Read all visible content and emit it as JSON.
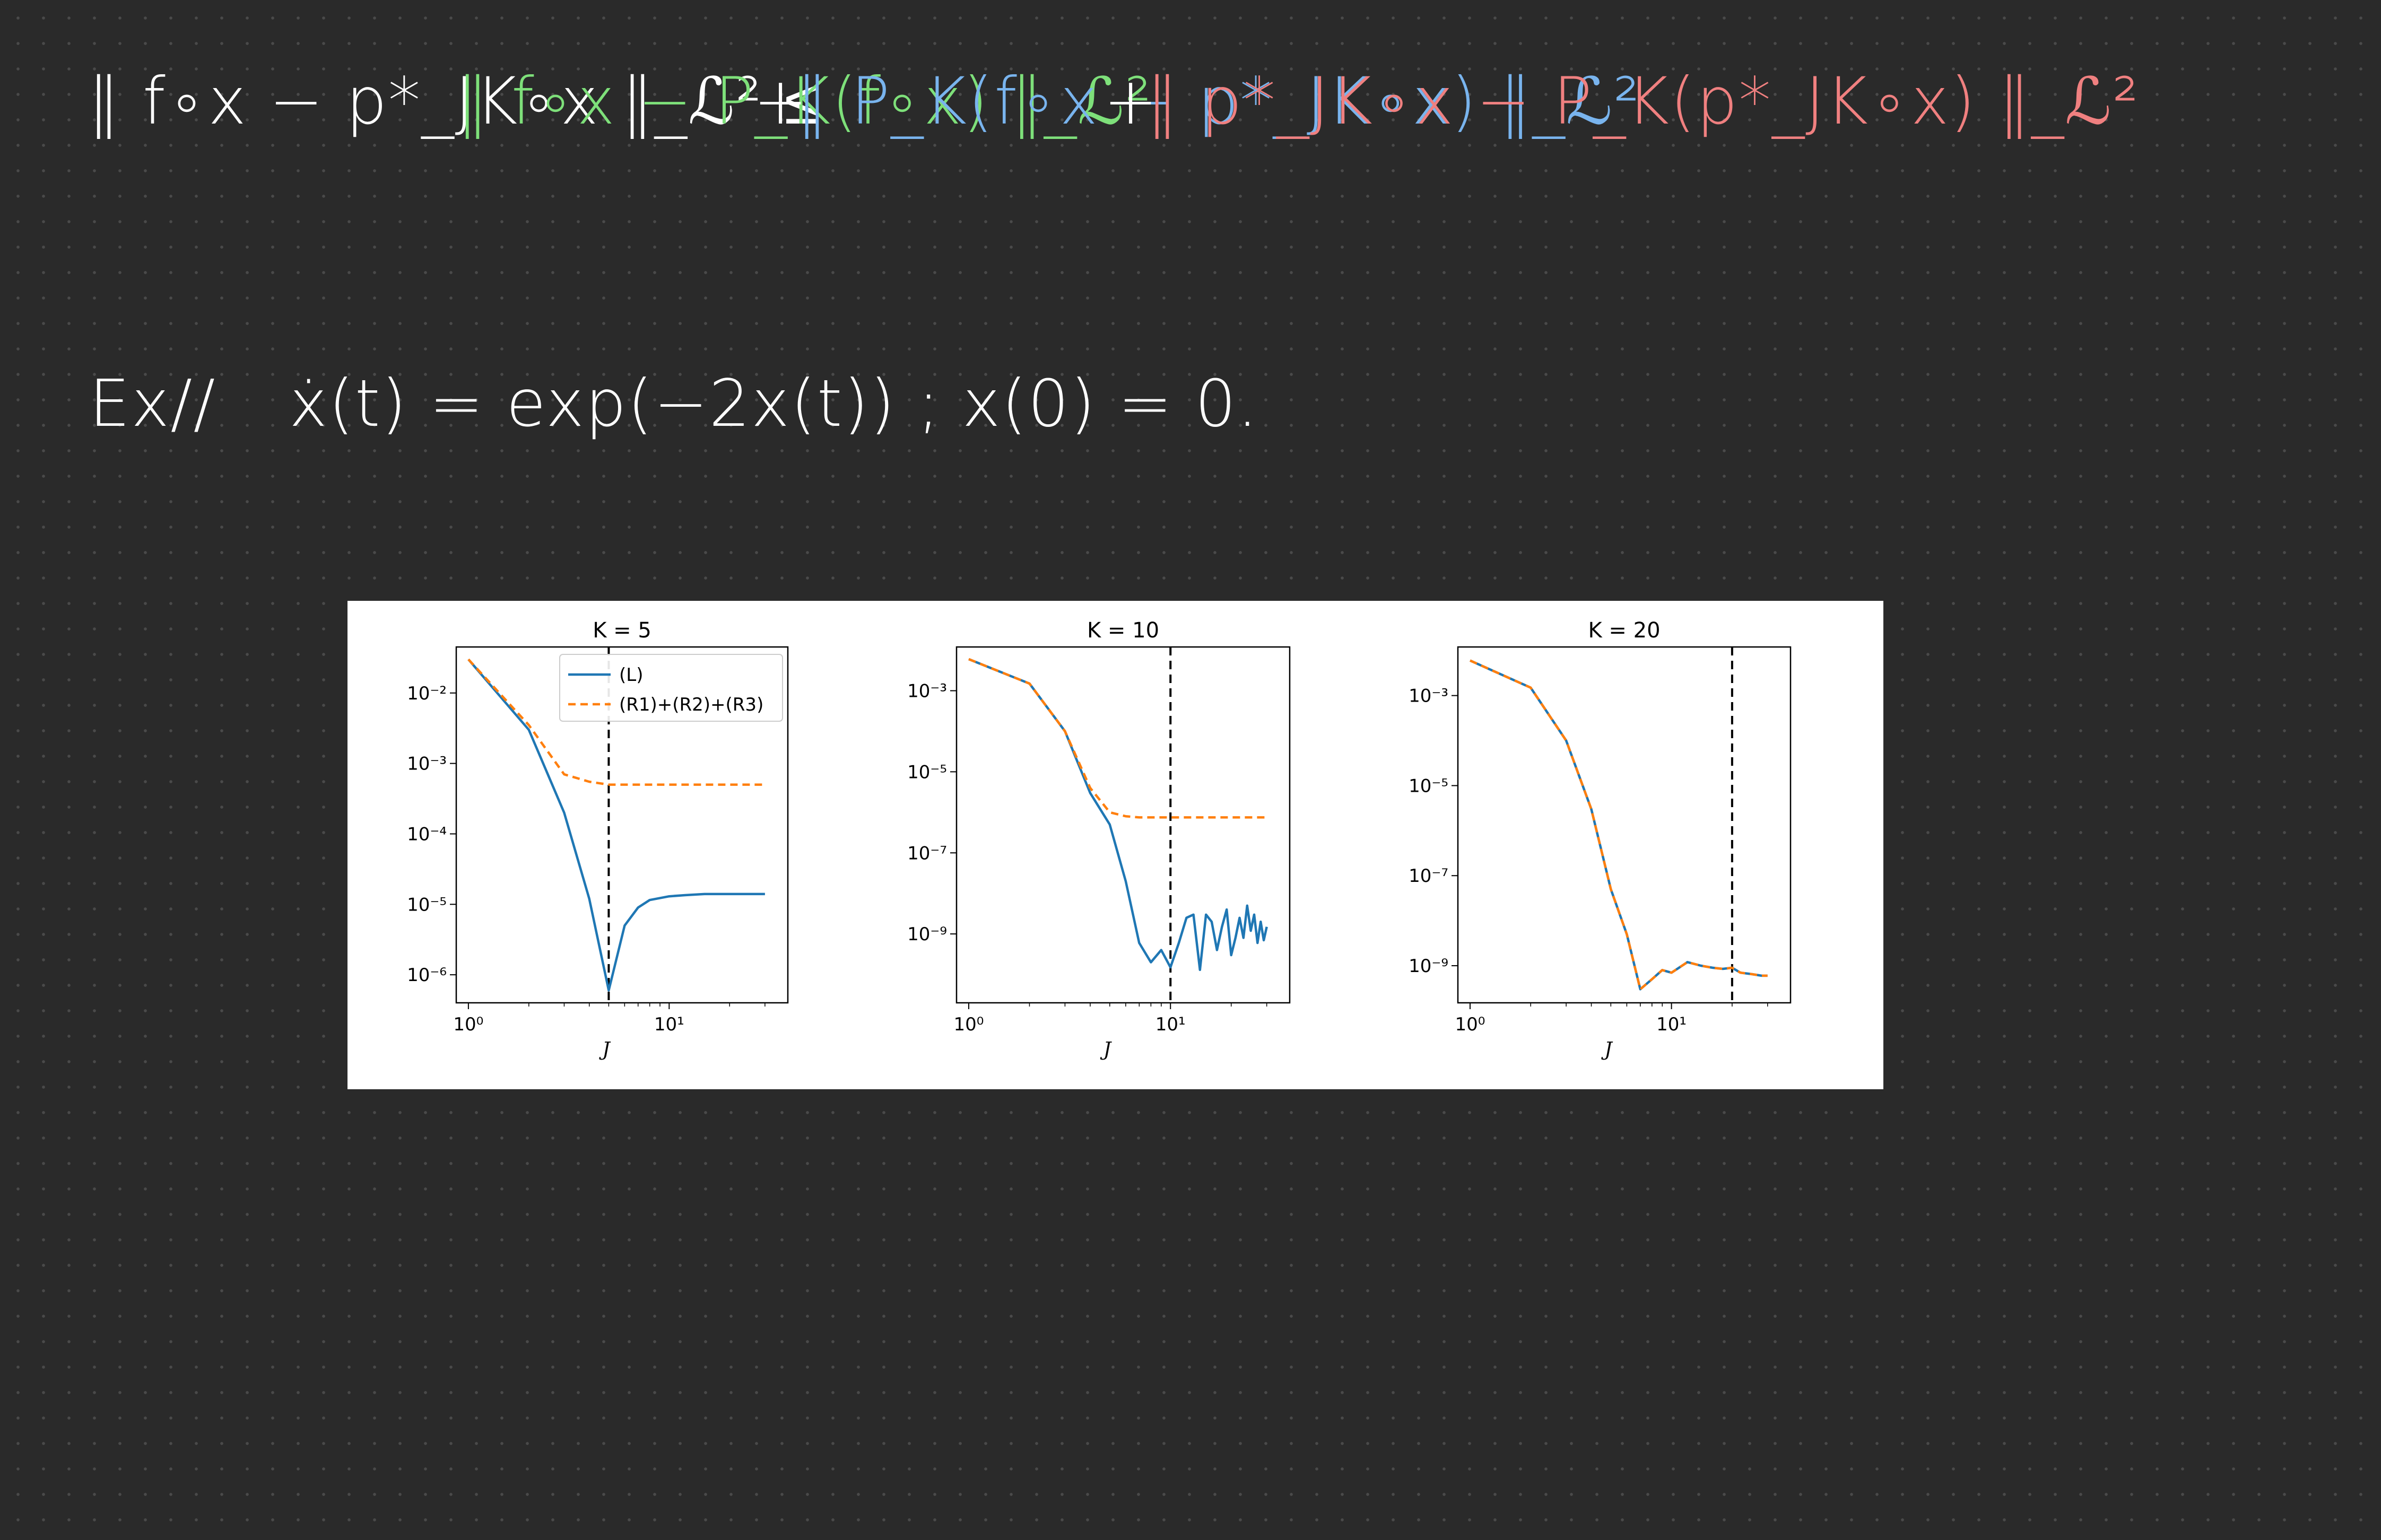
{
  "colors": {
    "background": "#2a2a2a",
    "term_lhs": "#ffffff",
    "term1": "#7ee07a",
    "term2": "#79b4ee",
    "term3": "#f08080",
    "series_L": "#1f77b4",
    "series_R": "#ff7f0e",
    "vline": "#000000"
  },
  "notes": {
    "inequality": {
      "lhs": "‖ f∘x − p*_JK∘x ‖_ℒ² ≤",
      "term1": "‖ f∘x − P_K(f∘x) ‖_ℒ²",
      "plus1": "+",
      "term2": "‖ P_K(f∘x − p*_JK∘x) ‖_ℒ²",
      "plus2": "+",
      "term3": "‖ p*_JK∘x − P_K(p*_JK∘x) ‖_ℒ²"
    },
    "example": {
      "label": "Ex//",
      "equation": "ẋ(t) = exp(−2x(t))  ;   x(0) = 0."
    }
  },
  "chart_data": [
    {
      "type": "line",
      "title": "K = 5",
      "xlabel": "J",
      "ylabel": "",
      "xscale": "log",
      "yscale": "log",
      "xlim": [
        0.87,
        39
      ],
      "ylim": [
        4e-07,
        0.045
      ],
      "xticks": [
        "10⁰",
        "10¹"
      ],
      "yticks": [
        "10⁻²",
        "10⁻³",
        "10⁻⁴",
        "10⁻⁵",
        "10⁻⁶"
      ],
      "vline_x": 5,
      "legend": {
        "position": "top-right",
        "entries": [
          "(L)",
          "(R1)+(R2)+(R3)"
        ]
      },
      "series": [
        {
          "name": "(L)",
          "style": "solid",
          "x": [
            1,
            2,
            3,
            4,
            5,
            6,
            7,
            8,
            10,
            12,
            15,
            20,
            25,
            30
          ],
          "y": [
            0.03,
            0.003,
            0.0002,
            1.2e-05,
            6e-07,
            5e-06,
            9e-06,
            1.15e-05,
            1.3e-05,
            1.35e-05,
            1.4e-05,
            1.4e-05,
            1.4e-05,
            1.4e-05
          ]
        },
        {
          "name": "(R1)+(R2)+(R3)",
          "style": "dashed",
          "x": [
            1,
            2,
            3,
            4,
            5,
            7,
            10,
            15,
            20,
            30
          ],
          "y": [
            0.03,
            0.0035,
            0.0007,
            0.00055,
            0.0005,
            0.0005,
            0.0005,
            0.0005,
            0.0005,
            0.0005
          ]
        }
      ]
    },
    {
      "type": "line",
      "title": "K = 10",
      "xlabel": "J",
      "ylabel": "",
      "xscale": "log",
      "yscale": "log",
      "xlim": [
        0.87,
        39
      ],
      "ylim": [
        2e-11,
        0.012
      ],
      "xticks": [
        "10⁰",
        "10¹"
      ],
      "yticks": [
        "10⁻³",
        "10⁻⁵",
        "10⁻⁷",
        "10⁻⁹"
      ],
      "vline_x": 10,
      "series": [
        {
          "name": "(L)",
          "style": "solid",
          "x": [
            1,
            2,
            3,
            4,
            5,
            6,
            7,
            8,
            9,
            10,
            11,
            12,
            13,
            14,
            15,
            16,
            17,
            18,
            19,
            20,
            21,
            22,
            23,
            24,
            25,
            26,
            27,
            28,
            29,
            30
          ],
          "y": [
            0.006,
            0.0015,
            0.0001,
            3e-06,
            5e-07,
            2e-08,
            6e-10,
            2e-10,
            4e-10,
            1.5e-10,
            6e-10,
            2.5e-09,
            3e-09,
            1.3e-10,
            3e-09,
            2e-09,
            4e-10,
            1.5e-09,
            4e-09,
            3e-10,
            8e-10,
            2.5e-09,
            8e-10,
            5e-09,
            1.2e-09,
            3e-09,
            6e-10,
            2e-09,
            7e-10,
            1.5e-09
          ]
        },
        {
          "name": "(R1)+(R2)+(R3)",
          "style": "dashed",
          "x": [
            1,
            2,
            3,
            4,
            5,
            6,
            7,
            8,
            10,
            15,
            20,
            30
          ],
          "y": [
            0.006,
            0.0015,
            0.0001,
            4e-06,
            1e-06,
            8e-07,
            7.5e-07,
            7.5e-07,
            7.5e-07,
            7.5e-07,
            7.5e-07,
            7.5e-07
          ]
        }
      ]
    },
    {
      "type": "line",
      "title": "K =  20",
      "xlabel": "J",
      "ylabel": "",
      "xscale": "log",
      "yscale": "log",
      "xlim": [
        0.87,
        39
      ],
      "ylim": [
        1.5e-10,
        0.012
      ],
      "xticks": [
        "10⁰",
        "10¹"
      ],
      "yticks": [
        "10⁻³",
        "10⁻⁵",
        "10⁻⁷",
        "10⁻⁹"
      ],
      "vline_x": 20,
      "series": [
        {
          "name": "(L)",
          "style": "solid",
          "x": [
            1,
            2,
            3,
            4,
            5,
            6,
            7,
            8,
            9,
            10,
            12,
            14,
            16,
            18,
            20,
            22,
            25,
            28,
            30
          ],
          "y": [
            0.006,
            0.0015,
            0.0001,
            3e-06,
            5e-08,
            5e-09,
            3e-10,
            5e-10,
            8e-10,
            7e-10,
            1.2e-09,
            1e-09,
            9e-10,
            8.5e-10,
            9e-10,
            7e-10,
            6.5e-10,
            6e-10,
            6e-10
          ]
        },
        {
          "name": "(R1)+(R2)+(R3)",
          "style": "dashed",
          "x": [
            1,
            2,
            3,
            4,
            5,
            6,
            7,
            8,
            9,
            10,
            12,
            14,
            16,
            18,
            20,
            22,
            25,
            28,
            30
          ],
          "y": [
            0.006,
            0.0015,
            0.0001,
            3e-06,
            5e-08,
            5e-09,
            3e-10,
            5e-10,
            8e-10,
            7e-10,
            1.2e-09,
            1e-09,
            9e-10,
            8.5e-10,
            9e-10,
            7e-10,
            6.5e-10,
            6e-10,
            6e-10
          ]
        }
      ]
    }
  ]
}
